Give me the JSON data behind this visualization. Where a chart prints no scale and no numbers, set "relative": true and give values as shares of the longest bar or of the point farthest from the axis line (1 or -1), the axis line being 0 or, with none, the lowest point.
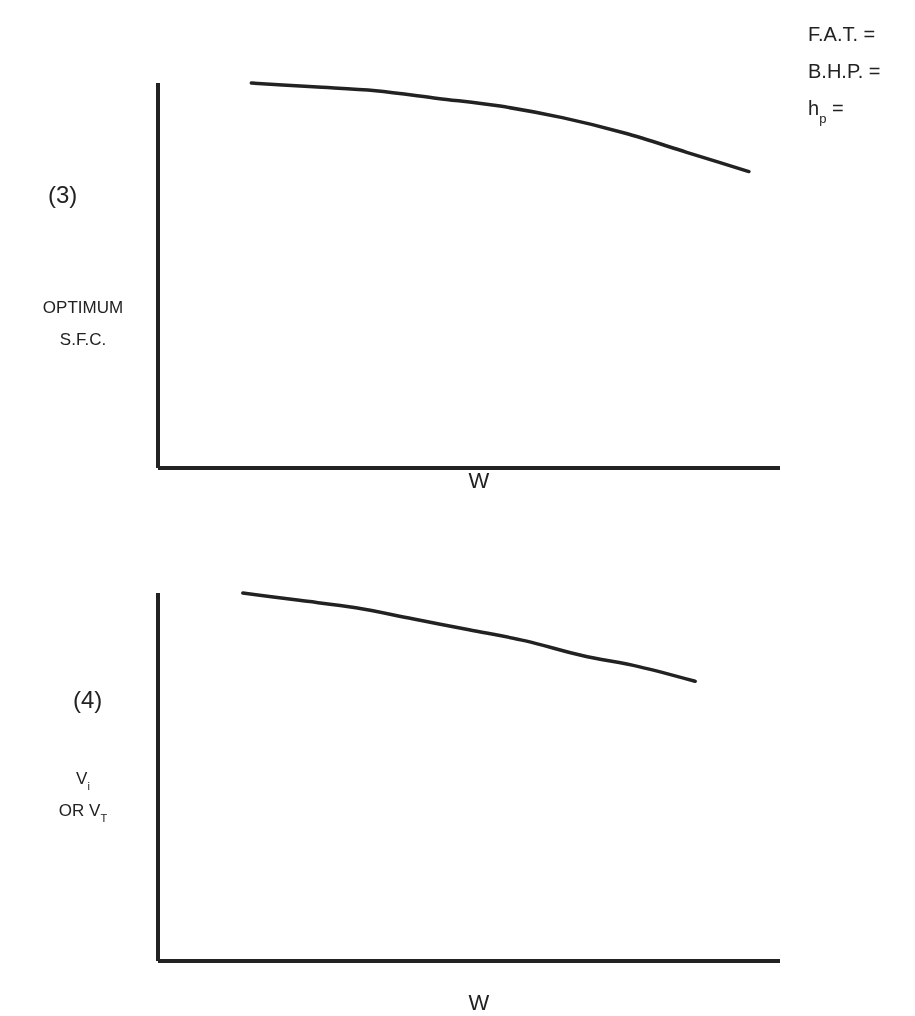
{
  "chart_data": [
    {
      "type": "line",
      "relative": true,
      "annotations": [
        "(3)",
        "F.A.T. =",
        "B.H.P. =",
        "h$_{p}$ ="
      ],
      "ylabel": "OPTIMUM\nS.F.C.",
      "xlabel": "W",
      "categories": [
        null,
        null,
        null,
        null,
        null,
        null,
        null,
        null,
        null,
        null
      ],
      "series": [
        {
          "color": "#222222",
          "values": [
            null,
            1,
            0.99,
            0.98,
            0.96,
            0.94,
            0.91,
            0.87,
            0.82,
            0.77
          ]
        }
      ]
    },
    {
      "type": "line",
      "relative": true,
      "annotations": [
        "(4)"
      ],
      "ylabel": "V$_{i}$\nOR V$_{T}$",
      "xlabel": "W",
      "categories": [
        null,
        null,
        null,
        null,
        null,
        null,
        null,
        null,
        null,
        null,
        null
      ],
      "series": [
        {
          "color": "#222222",
          "values": [
            null,
            1,
            0.98,
            0.96,
            0.93,
            0.9,
            0.87,
            0.83,
            0.8,
            0.76,
            null
          ]
        }
      ]
    }
  ]
}
